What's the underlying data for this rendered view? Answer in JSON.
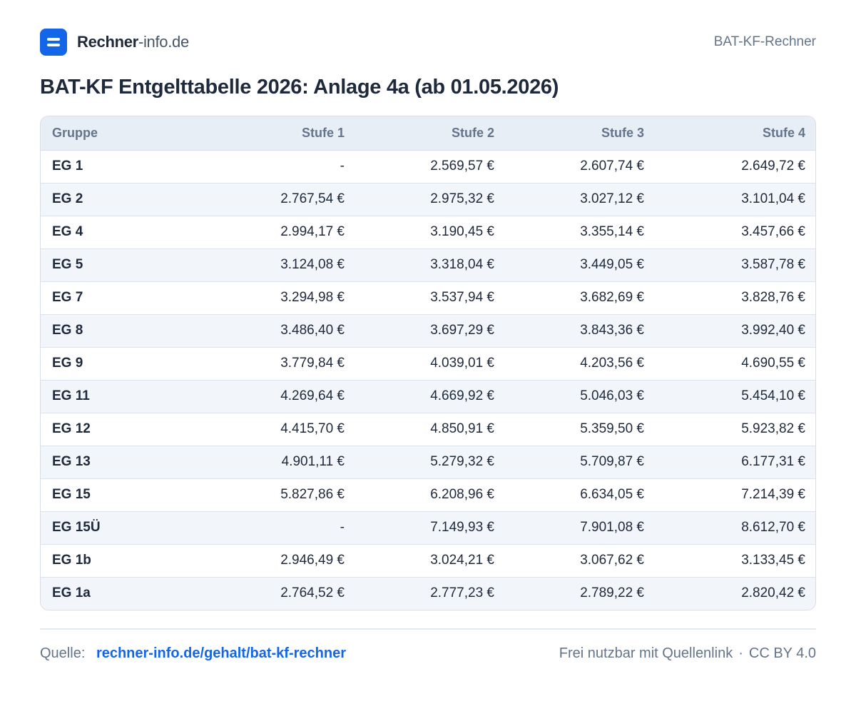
{
  "header": {
    "brand_name": "Rechner",
    "brand_suffix": "-info.de",
    "right_label": "BAT-KF-Rechner"
  },
  "title": "BAT-KF Entgelttabelle 2026: Anlage 4a (ab 01.05.2026)",
  "table": {
    "columns": [
      "Gruppe",
      "Stufe 1",
      "Stufe 2",
      "Stufe 3",
      "Stufe 4"
    ],
    "rows": [
      [
        "EG 1",
        "-",
        "2.569,57 €",
        "2.607,74 €",
        "2.649,72 €"
      ],
      [
        "EG 2",
        "2.767,54 €",
        "2.975,32 €",
        "3.027,12 €",
        "3.101,04 €"
      ],
      [
        "EG 4",
        "2.994,17 €",
        "3.190,45 €",
        "3.355,14 €",
        "3.457,66 €"
      ],
      [
        "EG 5",
        "3.124,08 €",
        "3.318,04 €",
        "3.449,05 €",
        "3.587,78 €"
      ],
      [
        "EG 7",
        "3.294,98 €",
        "3.537,94 €",
        "3.682,69 €",
        "3.828,76 €"
      ],
      [
        "EG 8",
        "3.486,40 €",
        "3.697,29 €",
        "3.843,36 €",
        "3.992,40 €"
      ],
      [
        "EG 9",
        "3.779,84 €",
        "4.039,01 €",
        "4.203,56 €",
        "4.690,55 €"
      ],
      [
        "EG 11",
        "4.269,64 €",
        "4.669,92 €",
        "5.046,03 €",
        "5.454,10 €"
      ],
      [
        "EG 12",
        "4.415,70 €",
        "4.850,91 €",
        "5.359,50 €",
        "5.923,82 €"
      ],
      [
        "EG 13",
        "4.901,11 €",
        "5.279,32 €",
        "5.709,87 €",
        "6.177,31 €"
      ],
      [
        "EG 15",
        "5.827,86 €",
        "6.208,96 €",
        "6.634,05 €",
        "7.214,39 €"
      ],
      [
        "EG 15Ü",
        "-",
        "7.149,93 €",
        "7.901,08 €",
        "8.612,70 €"
      ],
      [
        "EG 1b",
        "2.946,49 €",
        "3.024,21 €",
        "3.067,62 €",
        "3.133,45 €"
      ],
      [
        "EG 1a",
        "2.764,52 €",
        "2.777,23 €",
        "2.789,22 €",
        "2.820,42 €"
      ]
    ]
  },
  "footer": {
    "source_label": "Quelle:",
    "source_link": "rechner-info.de/gehalt/bat-kf-rechner",
    "license_text": "Frei nutzbar mit Quellenlink",
    "separator": "·",
    "license": "CC BY 4.0"
  },
  "colors": {
    "accent": "#1366e8",
    "text": "#1e293b",
    "muted": "#64748b",
    "header_bg": "#e8eef6",
    "stripe_bg": "#f2f6fb"
  },
  "icons": {
    "logo": "menu-logo-icon"
  }
}
